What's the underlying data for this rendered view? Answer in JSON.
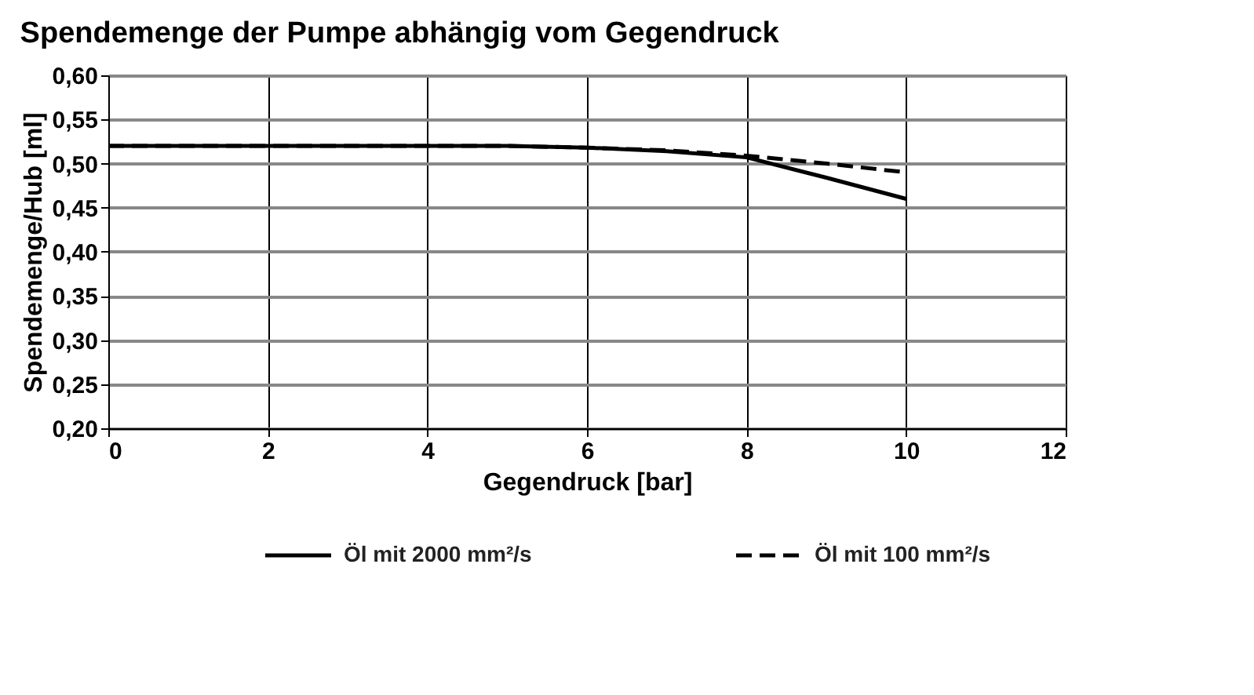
{
  "chart_data": {
    "type": "line",
    "title": "Spendemenge der Pumpe abhängig vom Gegendruck",
    "xlabel": "Gegendruck [bar]",
    "ylabel": "Spendemenge/Hub [ml]",
    "x": [
      0,
      1,
      2,
      3,
      4,
      5,
      6,
      7,
      8,
      9,
      10
    ],
    "series": [
      {
        "name": "Öl mit 2000 mm²/s",
        "color": "#000000",
        "line_style": "solid",
        "values": [
          0.52,
          0.52,
          0.52,
          0.52,
          0.52,
          0.52,
          0.518,
          0.514,
          0.507,
          0.484,
          0.46
        ]
      },
      {
        "name": "Öl mit 100 mm²/s",
        "color": "#000000",
        "line_style": "dashed",
        "values": [
          0.52,
          0.52,
          0.52,
          0.52,
          0.52,
          0.52,
          0.518,
          0.515,
          0.509,
          0.5,
          0.49
        ]
      }
    ],
    "xlim": [
      0,
      12
    ],
    "xticks": [
      0,
      2,
      4,
      6,
      8,
      10,
      12
    ],
    "ylim": [
      0.2,
      0.6
    ],
    "yticks": [
      {
        "value": 0.2,
        "label": "0,20"
      },
      {
        "value": 0.25,
        "label": "0,25"
      },
      {
        "value": 0.3,
        "label": "0,30"
      },
      {
        "value": 0.35,
        "label": "0,35"
      },
      {
        "value": 0.4,
        "label": "0,40"
      },
      {
        "value": 0.45,
        "label": "0,45"
      },
      {
        "value": 0.5,
        "label": "0,50"
      },
      {
        "value": 0.55,
        "label": "0,55"
      },
      {
        "value": 0.6,
        "label": "0,60"
      }
    ],
    "grid": true,
    "legend": "bottom",
    "marker": "none"
  }
}
